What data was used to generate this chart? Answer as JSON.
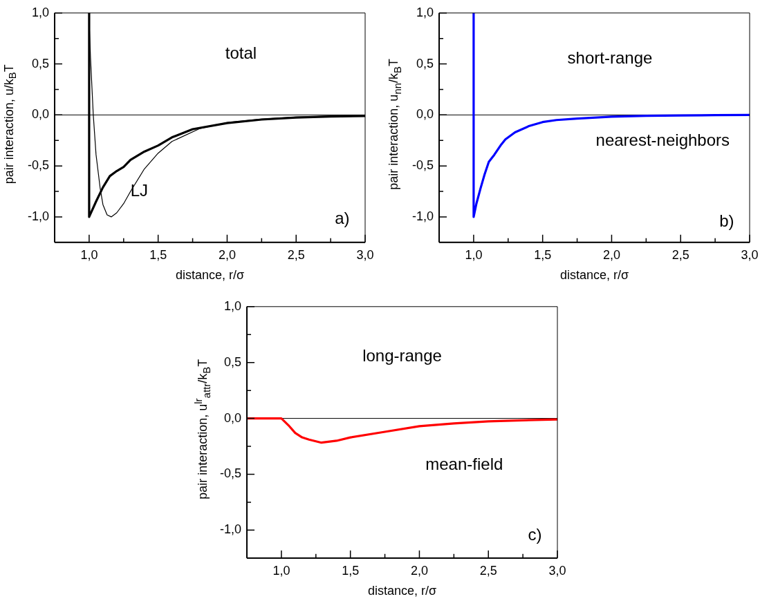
{
  "chart_data": [
    {
      "type": "line",
      "xlabel": "distance, r/σ",
      "ylabel": "pair interaction, u/k$_{B}$T",
      "series": [
        {
          "color": "#000000",
          "x": [
            1.0,
            1.0,
            1.05,
            1.1,
            1.15,
            1.2,
            1.25,
            1.3,
            1.4,
            1.5,
            1.6,
            1.75,
            2.0,
            2.25,
            2.5,
            2.75,
            3.0
          ],
          "values": [
            1.0,
            -1.0,
            -0.85,
            -0.71,
            -0.6,
            -0.55,
            -0.51,
            -0.44,
            -0.36,
            -0.3,
            -0.22,
            -0.14,
            -0.08,
            -0.045,
            -0.025,
            -0.015,
            -0.01
          ]
        },
        {
          "color": "#000000",
          "x": [
            1.0,
            1.01,
            1.03,
            1.05,
            1.08,
            1.1,
            1.13,
            1.16,
            1.2,
            1.25,
            1.3,
            1.4,
            1.5,
            1.6,
            1.8,
            2.0,
            2.25,
            2.5,
            2.75,
            3.0
          ],
          "values": [
            0.93,
            0.56,
            0.0,
            -0.39,
            -0.72,
            -0.88,
            -0.98,
            -1.0,
            -0.96,
            -0.87,
            -0.75,
            -0.53,
            -0.375,
            -0.26,
            -0.135,
            -0.075,
            -0.04,
            -0.02,
            -0.012,
            -0.007
          ]
        }
      ],
      "xlim": [
        0.75,
        3.0
      ],
      "ylim": [
        -1.25,
        1.0
      ],
      "xticks": [
        {
          "value": 1.0,
          "label": "1,0"
        },
        {
          "value": 1.25,
          "label": null
        },
        {
          "value": 1.5,
          "label": "1,5"
        },
        {
          "value": 1.75,
          "label": null
        },
        {
          "value": 2.0,
          "label": "2,0"
        },
        {
          "value": 2.25,
          "label": null
        },
        {
          "value": 2.5,
          "label": "2,5"
        },
        {
          "value": 2.75,
          "label": null
        },
        {
          "value": 3.0,
          "label": "3,0"
        }
      ],
      "yticks": [
        {
          "value": -1.0,
          "label": "-1,0"
        },
        {
          "value": -0.75,
          "label": null
        },
        {
          "value": -0.5,
          "label": "-0,5"
        },
        {
          "value": -0.25,
          "label": null
        },
        {
          "value": 0.0,
          "label": "0,0"
        },
        {
          "value": 0.25,
          "label": null
        },
        {
          "value": 0.5,
          "label": "0,5"
        },
        {
          "value": 0.75,
          "label": null
        },
        {
          "value": 1.0,
          "label": "1,0"
        }
      ],
      "ref_lines": [
        {
          "axis": "y",
          "value": 0,
          "color": "#000000"
        }
      ],
      "annotations": [
        "total",
        {
          "text": "LJ",
          "x": 1.3,
          "y": -0.75
        },
        "a)"
      ]
    },
    {
      "type": "line",
      "xlabel": "distance, r/σ",
      "ylabel": "pair interaction, u$_{nn}$/k$_{B}$T",
      "series": [
        {
          "color": "#0000ff",
          "x": [
            1.0,
            1.0,
            1.02,
            1.05,
            1.08,
            1.11,
            1.15,
            1.2,
            1.23,
            1.3,
            1.4,
            1.5,
            1.6,
            1.75,
            2.0,
            2.25,
            2.5,
            2.75,
            3.0
          ],
          "values": [
            1.0,
            -1.0,
            -0.87,
            -0.72,
            -0.58,
            -0.46,
            -0.39,
            -0.29,
            -0.24,
            -0.17,
            -0.11,
            -0.07,
            -0.05,
            -0.036,
            -0.017,
            -0.009,
            -0.005,
            -0.002,
            0.0
          ]
        }
      ],
      "xlim": [
        0.75,
        3.0
      ],
      "ylim": [
        -1.25,
        1.0
      ],
      "xticks": [
        {
          "value": 1.0,
          "label": "1,0"
        },
        {
          "value": 1.25,
          "label": null
        },
        {
          "value": 1.5,
          "label": "1,5"
        },
        {
          "value": 1.75,
          "label": null
        },
        {
          "value": 2.0,
          "label": "2,0"
        },
        {
          "value": 2.25,
          "label": null
        },
        {
          "value": 2.5,
          "label": "2,5"
        },
        {
          "value": 2.75,
          "label": null
        },
        {
          "value": 3.0,
          "label": "3,0"
        }
      ],
      "yticks": [
        {
          "value": -1.0,
          "label": "-1,0"
        },
        {
          "value": -0.75,
          "label": null
        },
        {
          "value": -0.5,
          "label": "-0,5"
        },
        {
          "value": -0.25,
          "label": null
        },
        {
          "value": 0.0,
          "label": "0,0"
        },
        {
          "value": 0.25,
          "label": null
        },
        {
          "value": 0.5,
          "label": "0,5"
        },
        {
          "value": 0.75,
          "label": null
        },
        {
          "value": 1.0,
          "label": "1,0"
        }
      ],
      "ref_lines": [
        {
          "axis": "y",
          "value": 0,
          "color": "#000000"
        }
      ],
      "annotations": [
        "short-range",
        "nearest-neighbors",
        "b)"
      ]
    },
    {
      "type": "line",
      "xlabel": "distance, r/σ",
      "ylabel": "pair interaction, u$^{lr}$$_{attr}$/k$_{B}$T",
      "series": [
        {
          "color": "#ff0000",
          "x": [
            0.75,
            1.0,
            1.05,
            1.1,
            1.15,
            1.2,
            1.29,
            1.4,
            1.5,
            1.75,
            2.0,
            2.25,
            2.5,
            2.75,
            3.0
          ],
          "values": [
            0.0,
            0.0,
            -0.06,
            -0.13,
            -0.17,
            -0.19,
            -0.217,
            -0.2,
            -0.17,
            -0.12,
            -0.07,
            -0.045,
            -0.027,
            -0.017,
            -0.01
          ]
        }
      ],
      "xlim": [
        0.75,
        3.0
      ],
      "ylim": [
        -1.25,
        1.0
      ],
      "xticks": [
        {
          "value": 1.0,
          "label": "1,0"
        },
        {
          "value": 1.25,
          "label": null
        },
        {
          "value": 1.5,
          "label": "1,5"
        },
        {
          "value": 1.75,
          "label": null
        },
        {
          "value": 2.0,
          "label": "2,0"
        },
        {
          "value": 2.25,
          "label": null
        },
        {
          "value": 2.5,
          "label": "2,5"
        },
        {
          "value": 2.75,
          "label": null
        },
        {
          "value": 3.0,
          "label": "3,0"
        }
      ],
      "yticks": [
        {
          "value": -1.0,
          "label": "-1,0"
        },
        {
          "value": -0.75,
          "label": null
        },
        {
          "value": -0.5,
          "label": "-0,5"
        },
        {
          "value": -0.25,
          "label": null
        },
        {
          "value": 0.0,
          "label": "0,0"
        },
        {
          "value": 0.25,
          "label": null
        },
        {
          "value": 0.5,
          "label": "0,5"
        },
        {
          "value": 0.75,
          "label": null
        },
        {
          "value": 1.0,
          "label": "1,0"
        }
      ],
      "ref_lines": [
        {
          "axis": "y",
          "value": 0,
          "color": "#000000"
        }
      ],
      "annotations": [
        "long-range",
        "mean-field",
        "c)"
      ]
    }
  ]
}
